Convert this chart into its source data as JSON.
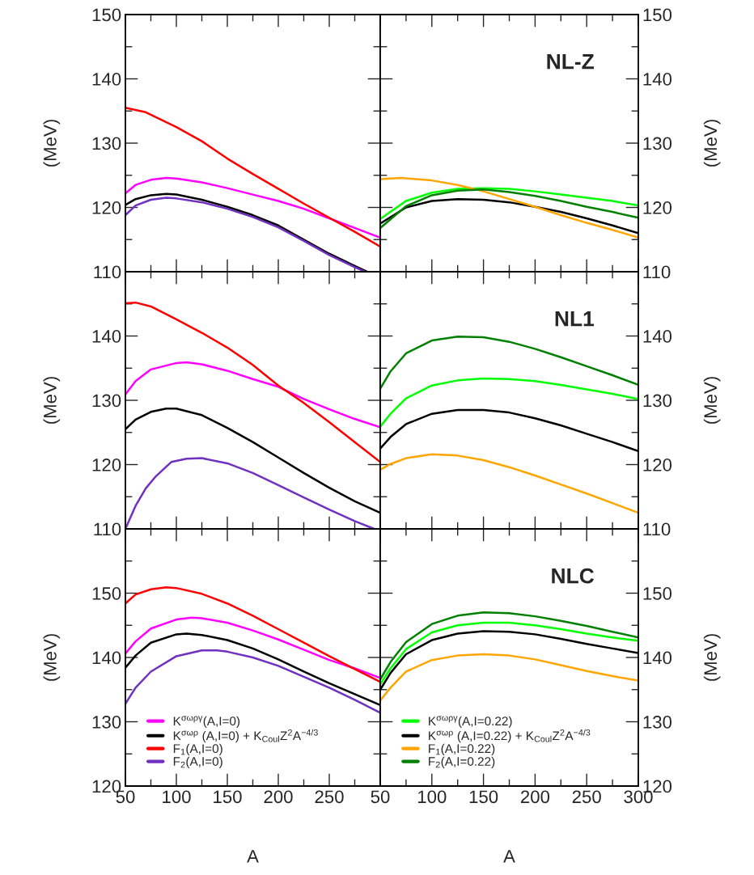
{
  "chart_data": [
    {
      "type": "line",
      "ylabel": "(MeV)",
      "xlim": [
        50,
        300
      ],
      "ylim": [
        110,
        150
      ],
      "tick_labels": "y",
      "grid": false,
      "legend": false,
      "xticks": [
        50,
        {
          "value": 75,
          "label": null
        },
        100,
        {
          "value": 125,
          "label": null
        },
        150,
        {
          "value": 175,
          "label": null
        },
        200,
        {
          "value": 225,
          "label": null
        },
        250,
        {
          "value": 275,
          "label": null
        },
        300
      ],
      "yticks": [
        110,
        {
          "value": 115,
          "label": null
        },
        120,
        {
          "value": 125,
          "label": null
        },
        130,
        {
          "value": 135,
          "label": null
        },
        140,
        {
          "value": 145,
          "label": null
        },
        150
      ],
      "series": [
        {
          "color": "#ff00ff",
          "x": [
            50,
            60,
            75,
            90,
            100,
            125,
            150,
            175,
            200,
            225,
            250,
            275,
            300
          ],
          "values": [
            122.2,
            123.5,
            124.3,
            124.6,
            124.5,
            123.9,
            123.0,
            122.0,
            121.0,
            119.8,
            118.3,
            116.8,
            115.3
          ]
        },
        {
          "color": "#000000",
          "x": [
            50,
            60,
            75,
            90,
            100,
            125,
            150,
            175,
            200,
            225,
            250,
            275,
            287
          ],
          "values": [
            120.4,
            121.3,
            121.9,
            122.1,
            122.0,
            121.2,
            120.1,
            118.8,
            117.2,
            115.0,
            112.8,
            110.9,
            110.0
          ]
        },
        {
          "color": "#ff0000",
          "x": [
            50,
            70,
            100,
            125,
            150,
            175,
            200,
            225,
            250,
            275,
            300
          ],
          "values": [
            135.5,
            134.8,
            132.5,
            130.3,
            127.6,
            125.2,
            122.9,
            120.6,
            118.4,
            116.2,
            113.9
          ]
        },
        {
          "color": "#7030c0",
          "x": [
            50,
            60,
            75,
            90,
            100,
            125,
            150,
            175,
            200,
            225,
            250,
            275,
            285
          ],
          "values": [
            118.8,
            120.3,
            121.2,
            121.5,
            121.4,
            120.8,
            119.8,
            118.5,
            116.9,
            114.8,
            112.6,
            110.7,
            110.0
          ]
        }
      ]
    },
    {
      "type": "line",
      "ylabel": "(MeV)",
      "xlim": [
        50,
        300
      ],
      "ylim": [
        110,
        150
      ],
      "tick_labels": "y",
      "grid": false,
      "legend": false,
      "annotations": [
        "NL-Z"
      ],
      "xticks": [
        50,
        {
          "value": 75,
          "label": null
        },
        100,
        {
          "value": 125,
          "label": null
        },
        150,
        {
          "value": 175,
          "label": null
        },
        200,
        {
          "value": 225,
          "label": null
        },
        250,
        {
          "value": 275,
          "label": null
        },
        300
      ],
      "yticks": [
        110,
        {
          "value": 115,
          "label": null
        },
        120,
        {
          "value": 125,
          "label": null
        },
        130,
        {
          "value": 135,
          "label": null
        },
        140,
        {
          "value": 145,
          "label": null
        },
        150
      ],
      "series": [
        {
          "color": "#00ff00",
          "x": [
            50,
            75,
            100,
            125,
            150,
            175,
            200,
            225,
            250,
            275,
            300
          ],
          "values": [
            118.2,
            121.0,
            122.3,
            122.9,
            123.0,
            122.9,
            122.5,
            122.0,
            121.5,
            121.0,
            120.3
          ]
        },
        {
          "color": "#000000",
          "x": [
            50,
            75,
            100,
            125,
            150,
            175,
            200,
            225,
            250,
            275,
            300
          ],
          "values": [
            117.5,
            120.0,
            121.0,
            121.3,
            121.2,
            120.8,
            120.1,
            119.3,
            118.3,
            117.2,
            116.0
          ]
        },
        {
          "color": "#ffa500",
          "x": [
            50,
            70,
            100,
            125,
            150,
            175,
            200,
            225,
            250,
            275,
            300
          ],
          "values": [
            124.4,
            124.6,
            124.2,
            123.5,
            122.5,
            121.3,
            120.1,
            118.8,
            117.6,
            116.5,
            115.3
          ]
        },
        {
          "color": "#008000",
          "x": [
            50,
            75,
            100,
            125,
            150,
            175,
            200,
            225,
            250,
            275,
            300
          ],
          "values": [
            116.8,
            120.2,
            121.9,
            122.6,
            122.8,
            122.4,
            121.8,
            121.0,
            120.1,
            119.3,
            118.4
          ]
        }
      ]
    },
    {
      "type": "line",
      "ylabel": "(MeV)",
      "xlim": [
        50,
        300
      ],
      "ylim": [
        110,
        150
      ],
      "tick_labels": "y",
      "grid": false,
      "legend": false,
      "xticks": [
        50,
        {
          "value": 75,
          "label": null
        },
        100,
        {
          "value": 125,
          "label": null
        },
        150,
        {
          "value": 175,
          "label": null
        },
        200,
        {
          "value": 225,
          "label": null
        },
        250,
        {
          "value": 275,
          "label": null
        },
        300
      ],
      "yticks": [
        110,
        {
          "value": 115,
          "label": null
        },
        120,
        {
          "value": 125,
          "label": null
        },
        130,
        {
          "value": 135,
          "label": null
        },
        140,
        {
          "value": 145,
          "label": null
        },
        {
          "value": 150,
          "label": null
        }
      ],
      "series": [
        {
          "color": "#ff00ff",
          "x": [
            50,
            60,
            75,
            100,
            110,
            125,
            150,
            175,
            200,
            225,
            250,
            275,
            300
          ],
          "values": [
            130.9,
            133.0,
            134.8,
            135.8,
            135.9,
            135.6,
            134.6,
            133.3,
            132.1,
            130.2,
            128.6,
            127.1,
            125.8
          ]
        },
        {
          "color": "#000000",
          "x": [
            50,
            60,
            75,
            90,
            100,
            125,
            150,
            175,
            200,
            225,
            250,
            275,
            300
          ],
          "values": [
            125.5,
            127.0,
            128.2,
            128.7,
            128.7,
            127.7,
            125.7,
            123.5,
            121.1,
            118.7,
            116.4,
            114.3,
            112.5
          ]
        },
        {
          "color": "#ff0000",
          "x": [
            50,
            60,
            75,
            100,
            125,
            150,
            175,
            200,
            225,
            250,
            275,
            300
          ],
          "values": [
            145.1,
            145.2,
            144.6,
            142.6,
            140.5,
            138.2,
            135.5,
            132.3,
            129.6,
            126.6,
            123.5,
            120.4
          ]
        },
        {
          "color": "#7030c0",
          "x": [
            50,
            60,
            70,
            80,
            95,
            110,
            125,
            150,
            175,
            200,
            225,
            250,
            275,
            294
          ],
          "values": [
            110.0,
            113.6,
            116.3,
            118.2,
            120.4,
            120.9,
            121.0,
            120.2,
            118.7,
            116.8,
            114.9,
            113.0,
            111.2,
            110.0
          ]
        }
      ]
    },
    {
      "type": "line",
      "ylabel": "(MeV)",
      "xlim": [
        50,
        300
      ],
      "ylim": [
        110,
        150
      ],
      "tick_labels": "y",
      "grid": false,
      "legend": false,
      "annotations": [
        "NL1"
      ],
      "xticks": [
        50,
        {
          "value": 75,
          "label": null
        },
        100,
        {
          "value": 125,
          "label": null
        },
        150,
        {
          "value": 175,
          "label": null
        },
        200,
        {
          "value": 225,
          "label": null
        },
        250,
        {
          "value": 275,
          "label": null
        },
        300
      ],
      "yticks": [
        110,
        {
          "value": 115,
          "label": null
        },
        120,
        {
          "value": 125,
          "label": null
        },
        130,
        {
          "value": 135,
          "label": null
        },
        140,
        {
          "value": 145,
          "label": null
        },
        {
          "value": 150,
          "label": null
        }
      ],
      "series": [
        {
          "color": "#00ff00",
          "x": [
            50,
            60,
            75,
            100,
            125,
            150,
            175,
            200,
            225,
            250,
            275,
            300
          ],
          "values": [
            125.9,
            127.9,
            130.3,
            132.3,
            133.1,
            133.4,
            133.3,
            133.0,
            132.4,
            131.7,
            131.0,
            130.2
          ]
        },
        {
          "color": "#000000",
          "x": [
            50,
            60,
            75,
            100,
            125,
            150,
            175,
            200,
            225,
            250,
            275,
            300
          ],
          "values": [
            122.5,
            124.3,
            126.3,
            127.9,
            128.5,
            128.5,
            128.1,
            127.2,
            126.1,
            124.8,
            123.5,
            122.1
          ]
        },
        {
          "color": "#ffa500",
          "x": [
            50,
            60,
            75,
            100,
            125,
            150,
            175,
            200,
            225,
            250,
            275,
            300
          ],
          "values": [
            119.2,
            120.1,
            121.0,
            121.6,
            121.4,
            120.7,
            119.6,
            118.3,
            116.9,
            115.5,
            114.0,
            112.5
          ]
        },
        {
          "color": "#008000",
          "x": [
            50,
            60,
            75,
            100,
            125,
            150,
            175,
            200,
            225,
            250,
            275,
            300
          ],
          "values": [
            131.8,
            134.5,
            137.3,
            139.3,
            139.9,
            139.8,
            139.1,
            138.0,
            136.7,
            135.3,
            133.9,
            132.4
          ]
        }
      ]
    },
    {
      "type": "line",
      "ylabel": "(MeV)",
      "xlabel": "A",
      "xlim": [
        50,
        300
      ],
      "ylim": [
        120,
        160
      ],
      "grid": false,
      "legend": "lower left",
      "xticks": [
        50,
        {
          "value": 75,
          "label": null
        },
        100,
        {
          "value": 125,
          "label": null
        },
        150,
        {
          "value": 175,
          "label": null
        },
        200,
        {
          "value": 225,
          "label": null
        },
        250,
        {
          "value": 275,
          "label": null
        },
        {
          "value": 300,
          "label": null
        }
      ],
      "yticks": [
        120,
        {
          "value": 125,
          "label": null
        },
        130,
        {
          "value": 135,
          "label": null
        },
        140,
        {
          "value": 145,
          "label": null
        },
        150,
        {
          "value": 155,
          "label": null
        },
        {
          "value": 160,
          "label": null
        }
      ],
      "series": [
        {
          "name": "K$^{σωργ}$(A,I=0)",
          "color": "#ff00ff",
          "x": [
            50,
            60,
            75,
            100,
            115,
            125,
            150,
            175,
            200,
            225,
            250,
            275,
            300
          ],
          "values": [
            140.6,
            142.5,
            144.5,
            145.9,
            146.2,
            146.1,
            145.4,
            144.2,
            142.8,
            141.2,
            139.6,
            138.3,
            136.8
          ]
        },
        {
          "name": "K$^{σωρ}$ (A,I=0) + K$_{Coul}$Z$^{2}$A$^{−4/3}$",
          "color": "#000000",
          "x": [
            50,
            60,
            75,
            100,
            110,
            125,
            150,
            175,
            200,
            225,
            250,
            275,
            300
          ],
          "values": [
            138.4,
            140.3,
            142.3,
            143.6,
            143.7,
            143.5,
            142.7,
            141.4,
            139.7,
            137.8,
            136.0,
            134.3,
            132.6
          ]
        },
        {
          "name": "F$_{1}$(A,I=0)",
          "color": "#ff0000",
          "x": [
            50,
            60,
            75,
            90,
            100,
            125,
            150,
            175,
            200,
            225,
            250,
            275,
            300
          ],
          "values": [
            148.4,
            149.8,
            150.6,
            150.9,
            150.8,
            149.9,
            148.4,
            146.5,
            144.4,
            142.3,
            140.2,
            138.2,
            136.2
          ]
        },
        {
          "name": "F$_{2}$(A,I=0)",
          "color": "#7030c0",
          "x": [
            50,
            60,
            75,
            100,
            125,
            140,
            150,
            175,
            200,
            225,
            250,
            275,
            300
          ],
          "values": [
            132.8,
            135.3,
            137.8,
            140.2,
            141.1,
            141.1,
            140.9,
            140.0,
            138.7,
            137.0,
            135.3,
            133.4,
            131.4
          ]
        }
      ]
    },
    {
      "type": "line",
      "ylabel": "(MeV)",
      "xlabel": "A",
      "xlim": [
        50,
        300
      ],
      "ylim": [
        120,
        160
      ],
      "grid": false,
      "legend": "lower left",
      "annotations": [
        "NLC"
      ],
      "xticks": [
        50,
        {
          "value": 75,
          "label": null
        },
        100,
        {
          "value": 125,
          "label": null
        },
        150,
        {
          "value": 175,
          "label": null
        },
        200,
        {
          "value": 225,
          "label": null
        },
        250,
        {
          "value": 275,
          "label": null
        },
        300
      ],
      "yticks": [
        120,
        {
          "value": 125,
          "label": null
        },
        130,
        {
          "value": 135,
          "label": null
        },
        140,
        {
          "value": 145,
          "label": null
        },
        150,
        {
          "value": 155,
          "label": null
        },
        {
          "value": 160,
          "label": null
        }
      ],
      "series": [
        {
          "name": "K$^{σωργ}$(A,I=0.22)",
          "color": "#00ff00",
          "x": [
            50,
            60,
            75,
            100,
            125,
            150,
            175,
            200,
            225,
            250,
            275,
            300
          ],
          "values": [
            135.8,
            138.3,
            141.3,
            143.9,
            145.0,
            145.4,
            145.4,
            145.0,
            144.4,
            143.7,
            143.1,
            142.6
          ]
        },
        {
          "name": "K$^{σωρ}$ (A,I=0.22) + K$_{Coul}$Z$^{2}$A$^{−4/3}$",
          "color": "#000000",
          "x": [
            50,
            60,
            75,
            100,
            125,
            150,
            175,
            200,
            225,
            250,
            275,
            300
          ],
          "values": [
            135.0,
            137.6,
            140.5,
            142.7,
            143.7,
            144.1,
            144.0,
            143.6,
            142.9,
            142.1,
            141.4,
            140.7
          ]
        },
        {
          "name": "F$_{1}$(A,I=0.22)",
          "color": "#ffa500",
          "x": [
            50,
            60,
            75,
            100,
            125,
            150,
            175,
            200,
            225,
            250,
            275,
            300
          ],
          "values": [
            133.3,
            135.3,
            137.8,
            139.6,
            140.3,
            140.5,
            140.3,
            139.7,
            138.8,
            137.9,
            137.1,
            136.4
          ]
        },
        {
          "name": "F$_{2}$(A,I=0.22)",
          "color": "#008000",
          "x": [
            50,
            60,
            75,
            100,
            125,
            150,
            175,
            200,
            225,
            250,
            275,
            300
          ],
          "values": [
            136.6,
            139.3,
            142.4,
            145.2,
            146.5,
            147.0,
            146.9,
            146.4,
            145.7,
            144.9,
            144.0,
            143.1
          ]
        }
      ]
    }
  ]
}
